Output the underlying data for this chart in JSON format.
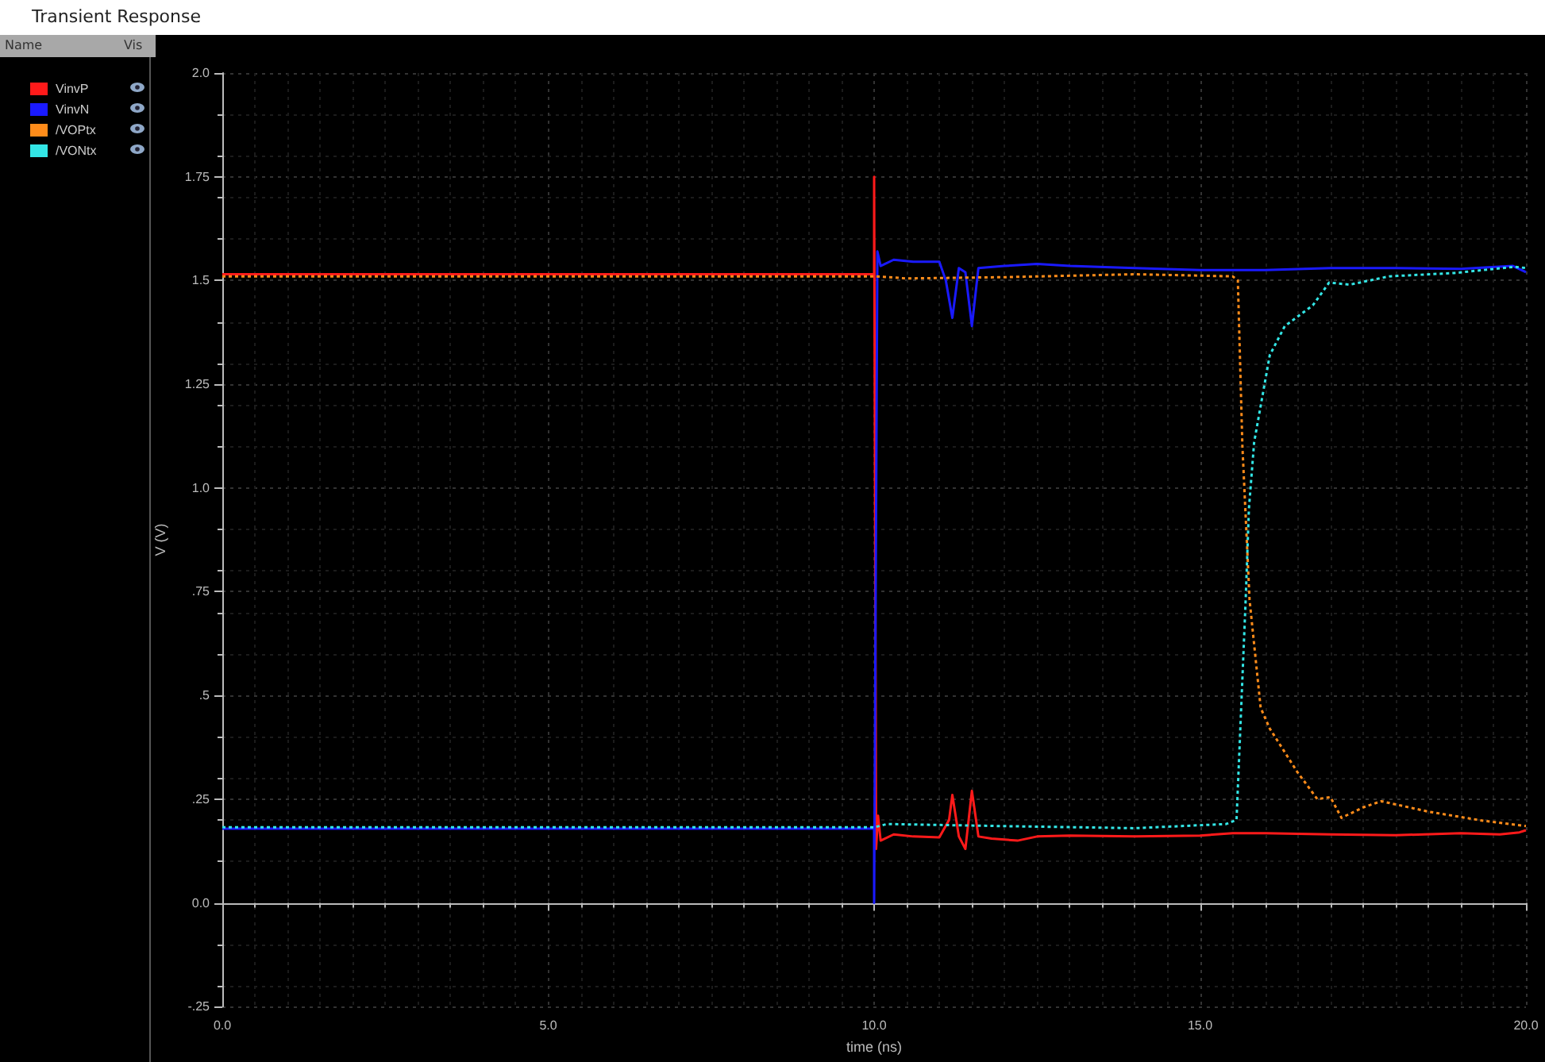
{
  "chart_data": {
    "type": "line",
    "title": "Transient Response",
    "xlabel": "time (ns)",
    "ylabel": "V (V)",
    "legend_title": "Name",
    "annotations": [
      "Vis"
    ],
    "xlim": [
      0,
      20
    ],
    "xticks": [
      {
        "value": 0,
        "label": "0.0"
      },
      {
        "value": 5,
        "label": "5.0"
      },
      {
        "value": 10,
        "label": "10.0"
      },
      {
        "value": 15,
        "label": "15.0"
      },
      {
        "value": 20,
        "label": "20.0"
      }
    ],
    "ylim": [
      -0.25,
      2
    ],
    "yticks": [
      {
        "value": -0.25,
        "label": "-.25"
      },
      {
        "value": 0,
        "label": "0.0"
      },
      {
        "value": 0.25,
        "label": ".25"
      },
      {
        "value": 0.5,
        "label": ".5"
      },
      {
        "value": 0.75,
        "label": ".75"
      },
      {
        "value": 1,
        "label": "1.0"
      },
      {
        "value": 1.25,
        "label": "1.25"
      },
      {
        "value": 1.5,
        "label": "1.5"
      },
      {
        "value": 1.75,
        "label": "1.75"
      },
      {
        "value": 2,
        "label": "2.0"
      }
    ],
    "grid": true,
    "legend": "left",
    "marker": "none",
    "series": [
      {
        "name": "VinvP",
        "color": "#ff1a1a",
        "line_style": "solid",
        "x": [
          0,
          10,
          10,
          10.03,
          10.06,
          10.1,
          10.3,
          10.6,
          11.0,
          11.15,
          11.2,
          11.3,
          11.4,
          11.5,
          11.6,
          11.8,
          12.2,
          12.5,
          13,
          14,
          15,
          15.5,
          16,
          17,
          18,
          19,
          19.6,
          19.9,
          20
        ],
        "values": [
          1.515,
          1.515,
          1.75,
          0.13,
          0.21,
          0.15,
          0.165,
          0.16,
          0.158,
          0.2,
          0.26,
          0.16,
          0.13,
          0.27,
          0.16,
          0.155,
          0.15,
          0.16,
          0.162,
          0.16,
          0.162,
          0.168,
          0.168,
          0.165,
          0.163,
          0.168,
          0.165,
          0.17,
          0.175
        ]
      },
      {
        "name": "VinvN",
        "color": "#1a1aff",
        "line_style": "solid",
        "x": [
          0,
          10,
          10,
          10.05,
          10.1,
          10.3,
          10.6,
          11.0,
          11.1,
          11.2,
          11.3,
          11.4,
          11.5,
          11.6,
          12,
          12.5,
          13,
          14,
          15,
          16,
          17,
          18,
          19,
          19.8,
          20
        ],
        "values": [
          0.179,
          0.179,
          0,
          1.57,
          1.535,
          1.55,
          1.545,
          1.545,
          1.5,
          1.41,
          1.53,
          1.52,
          1.39,
          1.53,
          1.535,
          1.54,
          1.535,
          1.53,
          1.525,
          1.525,
          1.53,
          1.53,
          1.528,
          1.535,
          1.52
        ]
      },
      {
        "name": "/VOPtx",
        "color": "#ff8c1a",
        "line_style": "dotted",
        "x": [
          0,
          10,
          10.5,
          12,
          14,
          15.5,
          15.58,
          15.65,
          15.76,
          15.93,
          16.07,
          16.49,
          16.8,
          17.0,
          17.17,
          17.5,
          17.78,
          18.5,
          19.34,
          20
        ],
        "values": [
          1.51,
          1.51,
          1.505,
          1.508,
          1.515,
          1.51,
          1.5,
          1.1,
          0.73,
          0.47,
          0.42,
          0.316,
          0.25,
          0.255,
          0.205,
          0.23,
          0.245,
          0.22,
          0.198,
          0.185
        ]
      },
      {
        "name": "/VONtx",
        "color": "#33e6e6",
        "line_style": "dotted",
        "x": [
          0,
          10,
          10.2,
          12,
          14,
          15.4,
          15.56,
          15.7,
          15.75,
          15.83,
          16.07,
          16.3,
          16.73,
          16.98,
          17.3,
          17.9,
          18.9,
          19.83,
          20
        ],
        "values": [
          0.182,
          0.182,
          0.19,
          0.185,
          0.18,
          0.19,
          0.2,
          0.73,
          0.95,
          1.11,
          1.32,
          1.39,
          1.44,
          1.495,
          1.49,
          1.51,
          1.518,
          1.533,
          1.53
        ]
      }
    ]
  }
}
